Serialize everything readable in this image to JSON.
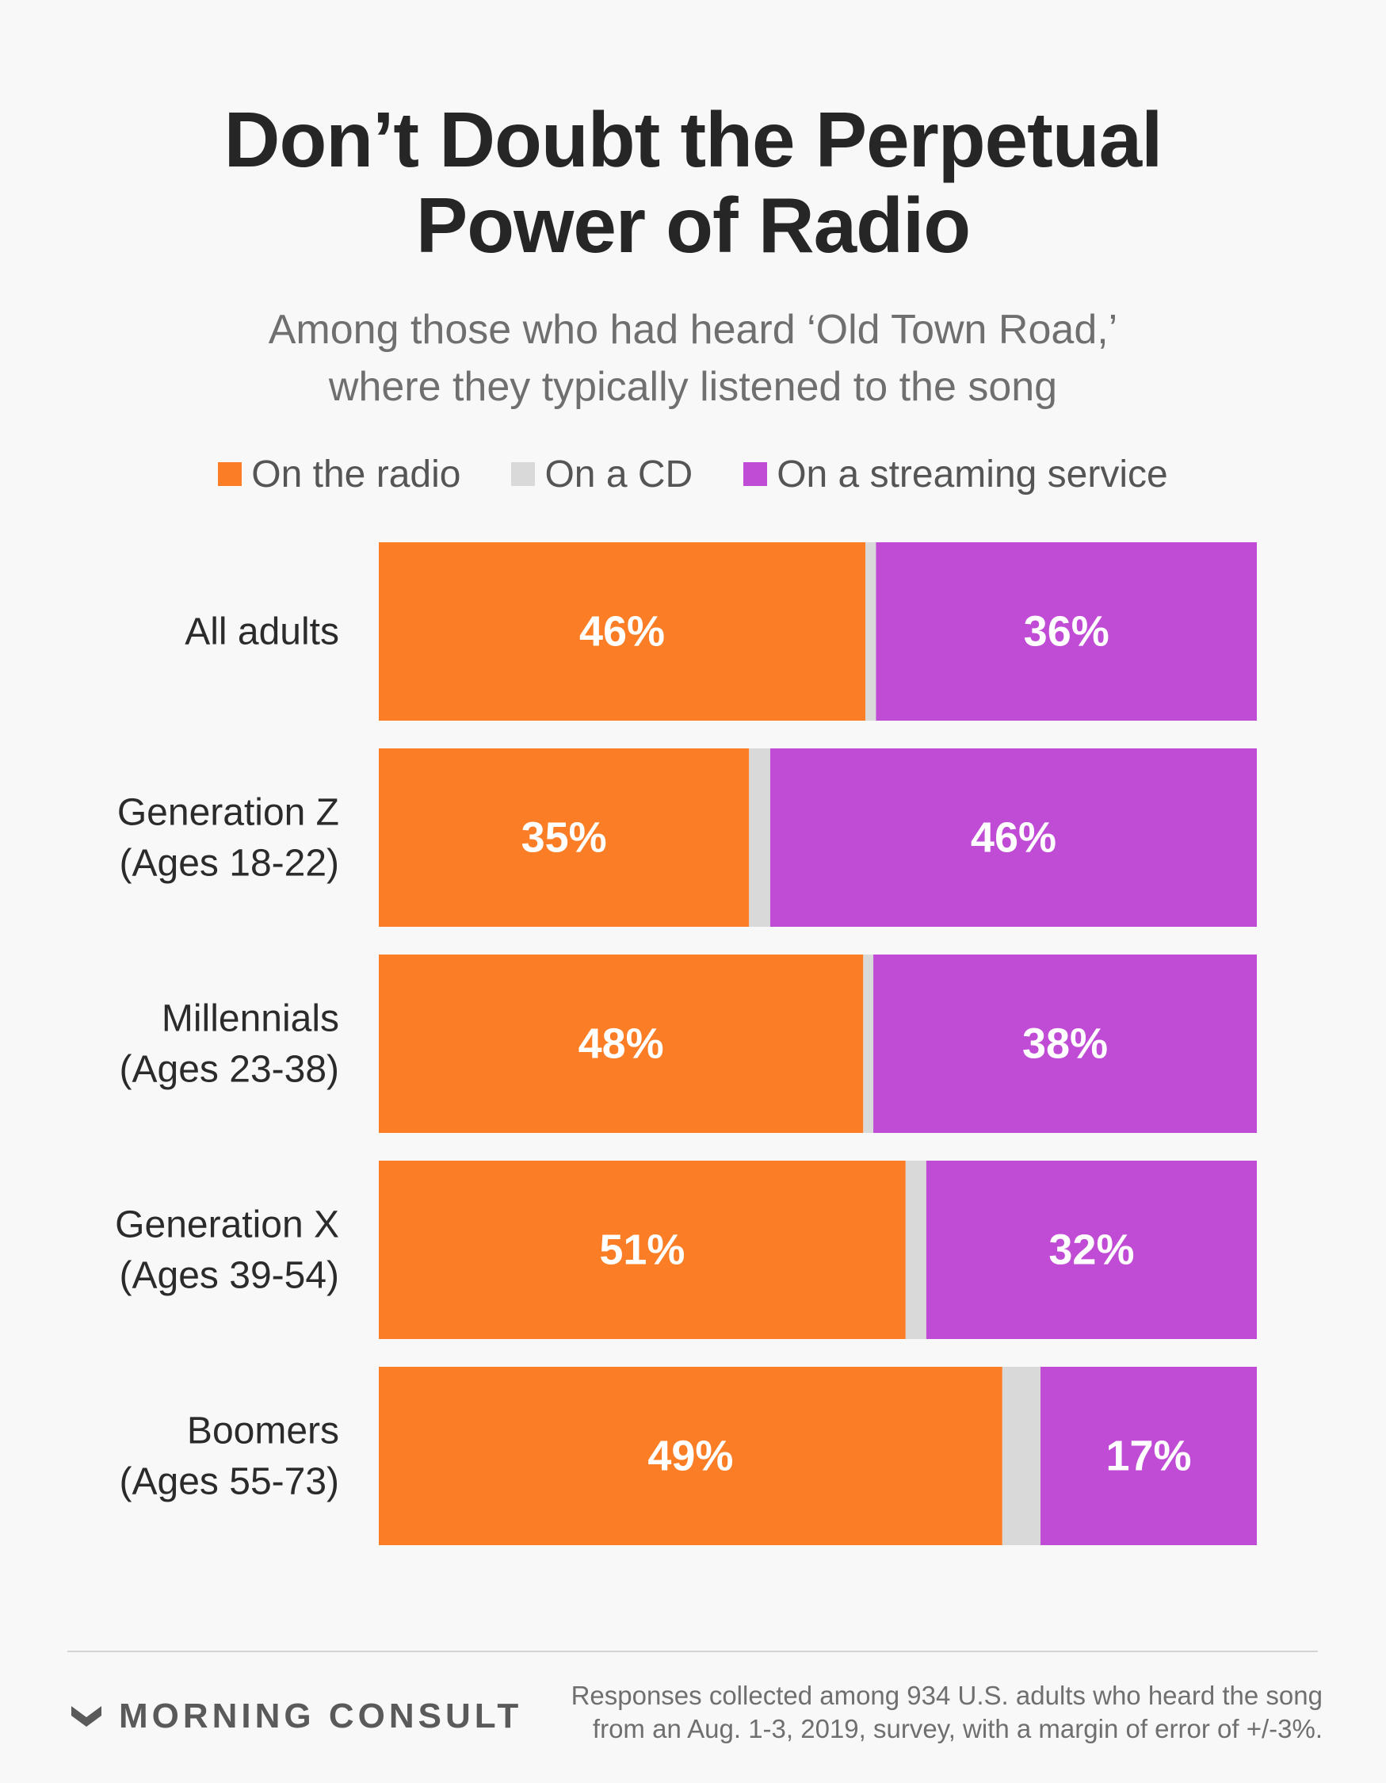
{
  "title_lines": [
    "Don’t Doubt the Perpetual",
    "Power of Radio"
  ],
  "subtitle_lines": [
    "Among those who had heard ‘Old Town Road,’",
    "where they typically listened to the song"
  ],
  "legend": [
    {
      "label": "On the radio",
      "color": "#fb7e26"
    },
    {
      "label": "On a CD",
      "color": "#d9d9d9"
    },
    {
      "label": "On a streaming service",
      "color": "#c04cd6"
    }
  ],
  "chart_data": {
    "type": "bar",
    "orientation": "horizontal",
    "stacked": true,
    "title": "Don’t Doubt the Perpetual Power of Radio",
    "subtitle": "Among those who had heard ‘Old Town Road,’ where they typically listened to the song",
    "categories": [
      [
        "All adults"
      ],
      [
        "Generation Z",
        "(Ages 18-22)"
      ],
      [
        "Millennials",
        "(Ages 23-38)"
      ],
      [
        "Generation X",
        "(Ages 39-54)"
      ],
      [
        "Boomers",
        "(Ages 55-73)"
      ]
    ],
    "series": [
      {
        "name": "On the radio",
        "color": "#fb7e26",
        "values": [
          46,
          35,
          48,
          51,
          49
        ],
        "labels": [
          "46%",
          "35%",
          "48%",
          "51%",
          "49%"
        ]
      },
      {
        "name": "On a CD",
        "color": "#d9d9d9",
        "values": [
          1,
          2,
          1,
          2,
          3
        ],
        "labels": null
      },
      {
        "name": "On a streaming service",
        "color": "#c04cd6",
        "values": [
          36,
          46,
          38,
          32,
          17
        ],
        "labels": [
          "36%",
          "46%",
          "38%",
          "32%",
          "17%"
        ]
      }
    ],
    "legend_position": "top",
    "grid": false
  },
  "footer": {
    "brand": "MORNING CONSULT",
    "note_lines": [
      "Responses collected among 934 U.S. adults who heard the song",
      "from an Aug. 1-3, 2019, survey, with a margin of error of +/-3%."
    ]
  }
}
